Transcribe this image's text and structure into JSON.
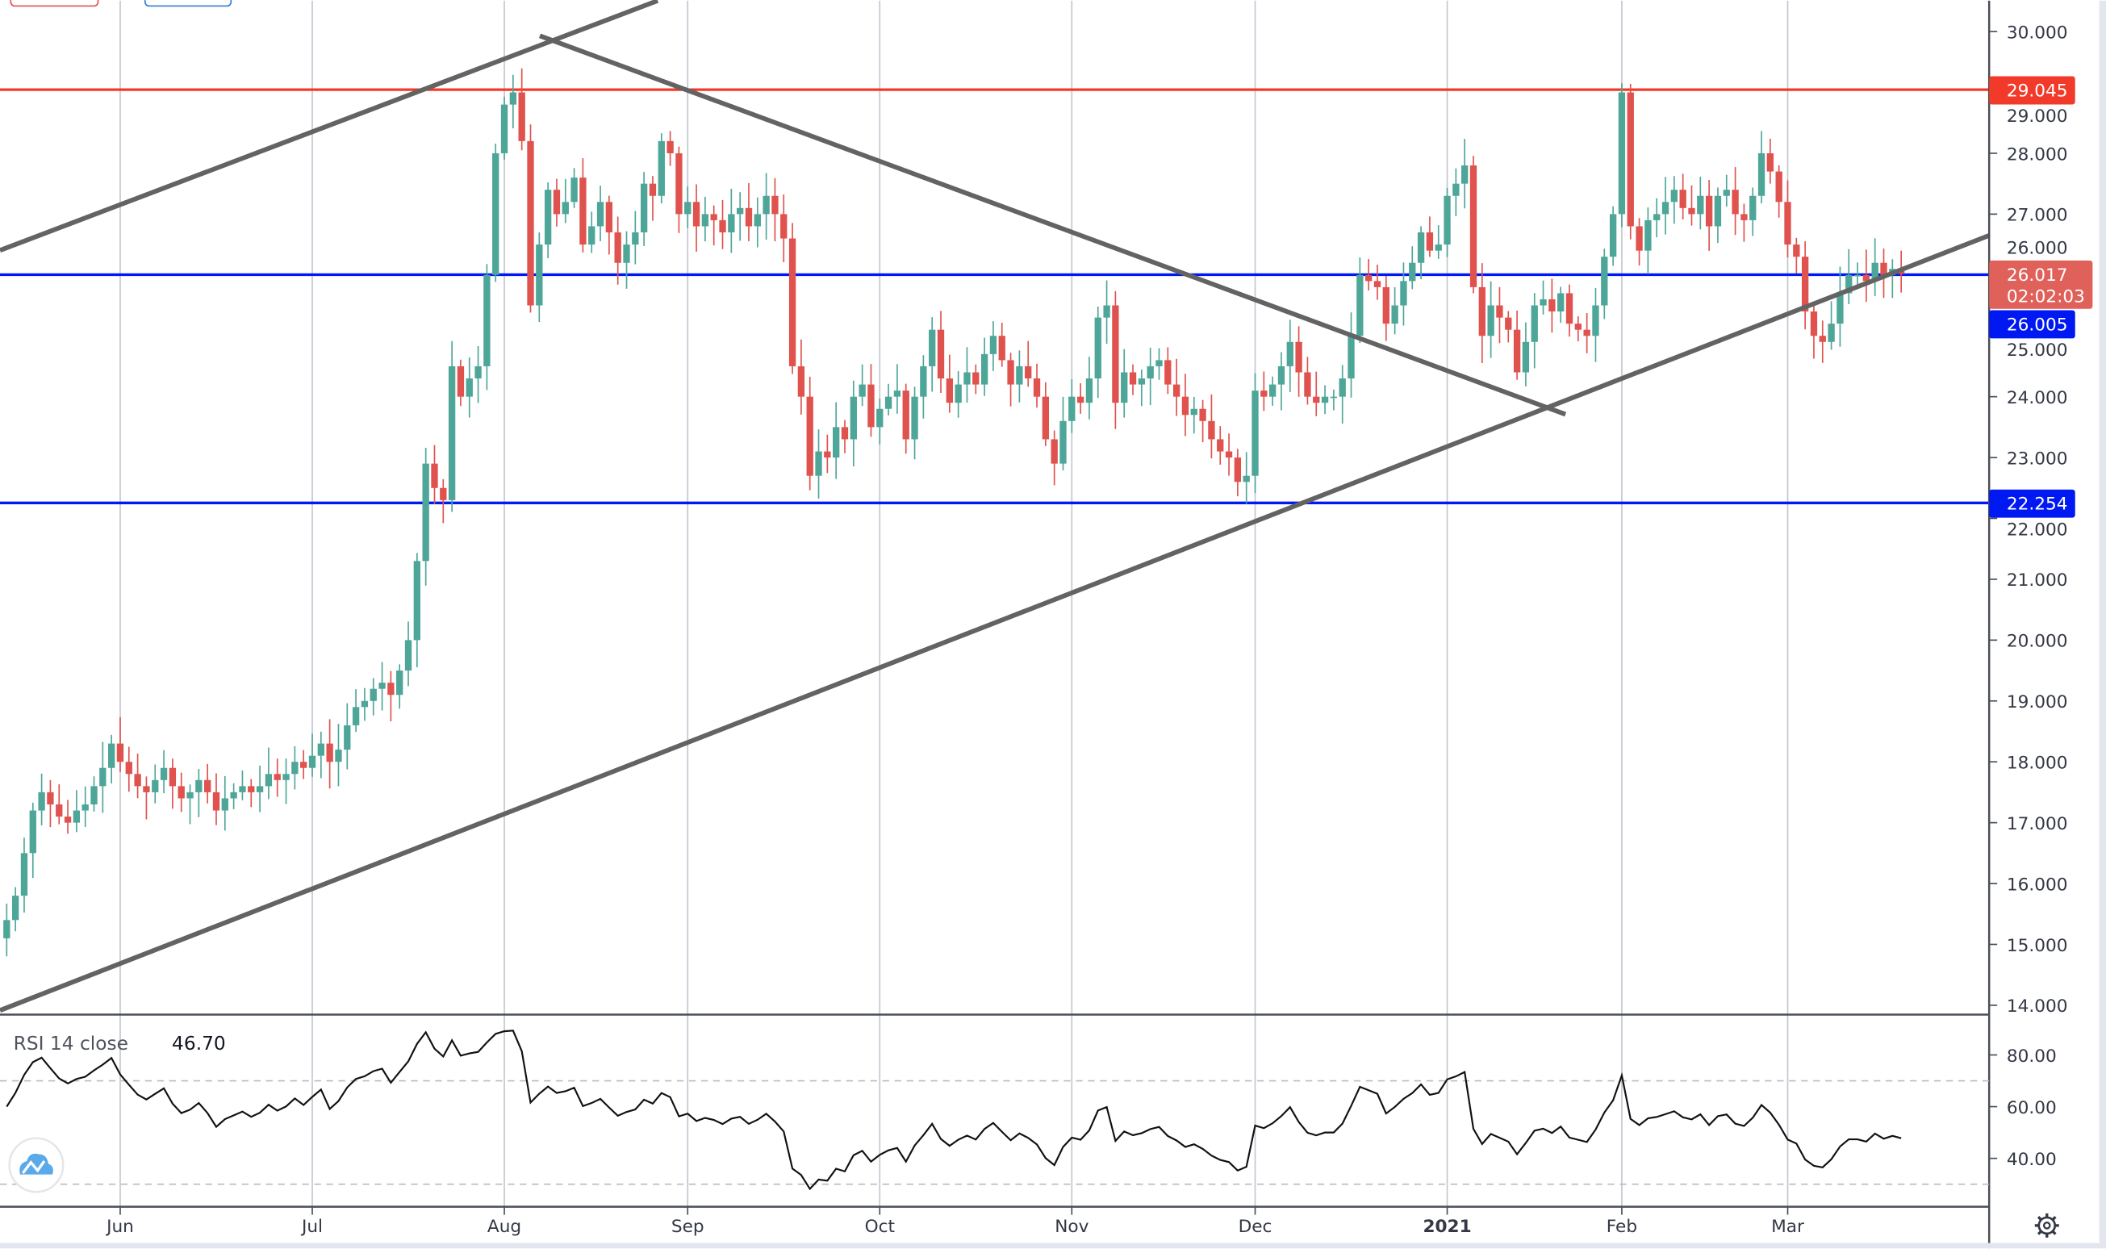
{
  "chart_data": {
    "type": "candlestick",
    "interval": "daily",
    "y_ticks": [
      "30.000",
      "29.000",
      "28.000",
      "27.000",
      "26.000",
      "25.000",
      "24.000",
      "23.000",
      "22.000",
      "21.000",
      "20.000",
      "19.000",
      "18.000",
      "17.000",
      "16.000",
      "15.000",
      "14.000"
    ],
    "ylim": [
      14,
      30
    ],
    "x_ticks": [
      {
        "label": "Jun",
        "date": "2020-06-01",
        "bold": false
      },
      {
        "label": "Jul",
        "date": "2020-07-01",
        "bold": false
      },
      {
        "label": "Aug",
        "date": "2020-08-01",
        "bold": false
      },
      {
        "label": "Sep",
        "date": "2020-09-01",
        "bold": false
      },
      {
        "label": "Oct",
        "date": "2020-10-01",
        "bold": false
      },
      {
        "label": "Nov",
        "date": "2020-11-01",
        "bold": false
      },
      {
        "label": "Dec",
        "date": "2020-12-01",
        "bold": false
      },
      {
        "label": "2021",
        "date": "2021-01-01",
        "bold": true
      },
      {
        "label": "Feb",
        "date": "2021-02-01",
        "bold": false
      },
      {
        "label": "Mar",
        "date": "2021-03-01",
        "bold": false
      }
    ],
    "grid": "vertical",
    "colors": {
      "up": "#4ea699",
      "down": "#e0524e",
      "trendline": "#636363",
      "resistance": "#f23a2a",
      "support": "#0018f2",
      "last_price": "#e0605a"
    },
    "first_bar_date": "2020-05-14",
    "closes": [
      15.4,
      15.8,
      16.5,
      17.2,
      17.5,
      17.3,
      17.1,
      17.0,
      17.2,
      17.3,
      17.6,
      17.9,
      18.3,
      18.0,
      17.8,
      17.6,
      17.5,
      17.7,
      17.9,
      17.6,
      17.4,
      17.5,
      17.7,
      17.5,
      17.2,
      17.4,
      17.5,
      17.6,
      17.5,
      17.6,
      17.8,
      17.7,
      17.8,
      18.0,
      17.9,
      18.1,
      18.3,
      18.0,
      18.2,
      18.6,
      18.9,
      19.0,
      19.2,
      19.3,
      19.1,
      19.5,
      20.0,
      21.3,
      22.9,
      22.5,
      22.3,
      24.5,
      24.0,
      24.3,
      24.5,
      26.0,
      28.0,
      28.8,
      29.0,
      28.2,
      25.5,
      26.5,
      27.4,
      27.0,
      27.2,
      27.6,
      26.5,
      26.8,
      27.2,
      26.7,
      26.2,
      26.5,
      26.7,
      27.5,
      27.3,
      28.2,
      28.0,
      27.0,
      27.2,
      26.8,
      27.0,
      26.9,
      26.7,
      27.0,
      27.1,
      26.8,
      27.0,
      27.3,
      27.0,
      26.6,
      24.5,
      24.0,
      22.7,
      23.1,
      23.0,
      23.5,
      23.3,
      24.0,
      24.2,
      23.5,
      23.8,
      24.0,
      24.1,
      23.3,
      24.0,
      24.5,
      25.1,
      24.3,
      23.9,
      24.2,
      24.4,
      24.2,
      24.7,
      25.0,
      24.6,
      24.2,
      24.5,
      24.3,
      24.0,
      23.3,
      22.9,
      23.6,
      24.0,
      23.9,
      24.3,
      25.3,
      25.5,
      23.9,
      24.4,
      24.2,
      24.3,
      24.5,
      24.6,
      24.2,
      24.0,
      23.7,
      23.8,
      23.6,
      23.3,
      23.1,
      23.0,
      22.6,
      22.7,
      24.1,
      24.0,
      24.2,
      24.5,
      24.9,
      24.4,
      24.0,
      23.9,
      24.0,
      24.0,
      24.3,
      25.0,
      26.0,
      25.9,
      25.8,
      25.2,
      25.5,
      25.9,
      26.2,
      26.7,
      26.4,
      26.5,
      27.3,
      27.5,
      27.8,
      25.8,
      25.0,
      25.5,
      25.3,
      25.1,
      24.4,
      24.9,
      25.5,
      25.6,
      25.4,
      25.7,
      25.2,
      25.1,
      25.0,
      25.5,
      26.3,
      27.0,
      29.0,
      26.8,
      26.4,
      26.9,
      27.0,
      27.2,
      27.4,
      27.1,
      27.0,
      27.3,
      26.8,
      27.3,
      27.4,
      27.0,
      26.9,
      27.3,
      28.0,
      27.7,
      27.2,
      26.5,
      26.3,
      25.4,
      25.0,
      24.9,
      25.2,
      25.7,
      26.0,
      26.0,
      25.9,
      26.2,
      26.0,
      26.1,
      26.017
    ],
    "horizontal_levels": [
      {
        "price": 29.045,
        "label": "29.045",
        "role": "resistance"
      },
      {
        "price": 26.005,
        "label": "26.005",
        "role": "support"
      },
      {
        "price": 22.254,
        "label": "22.254",
        "role": "support"
      }
    ],
    "trendlines": [
      {
        "p1": {
          "date": "2020-05-13",
          "price": 26.4
        },
        "p2": {
          "date": "2020-08-27",
          "price": 30.51
        },
        "extend": true
      },
      {
        "p1": {
          "date": "2020-08-07",
          "price": 29.93
        },
        "p2": {
          "date": "2021-01-22",
          "price": 23.71
        },
        "extend": false
      },
      {
        "p1": {
          "date": "2020-05-13",
          "price": 13.91
        },
        "p2": {
          "date": "2021-03-01",
          "price": 25.36
        },
        "extend": true
      }
    ],
    "last_price": {
      "value": "26.017",
      "countdown": "02:02:03"
    },
    "rsi": {
      "title": "RSI 14 close",
      "value": "46.70",
      "period": 14,
      "ticks": [
        "80.00",
        "60.00",
        "40.00"
      ],
      "levels": [
        70,
        30
      ],
      "ylim": [
        25,
        95
      ]
    }
  },
  "logo": "tradingview-cloud-icon",
  "settings_icon": "gear-icon"
}
